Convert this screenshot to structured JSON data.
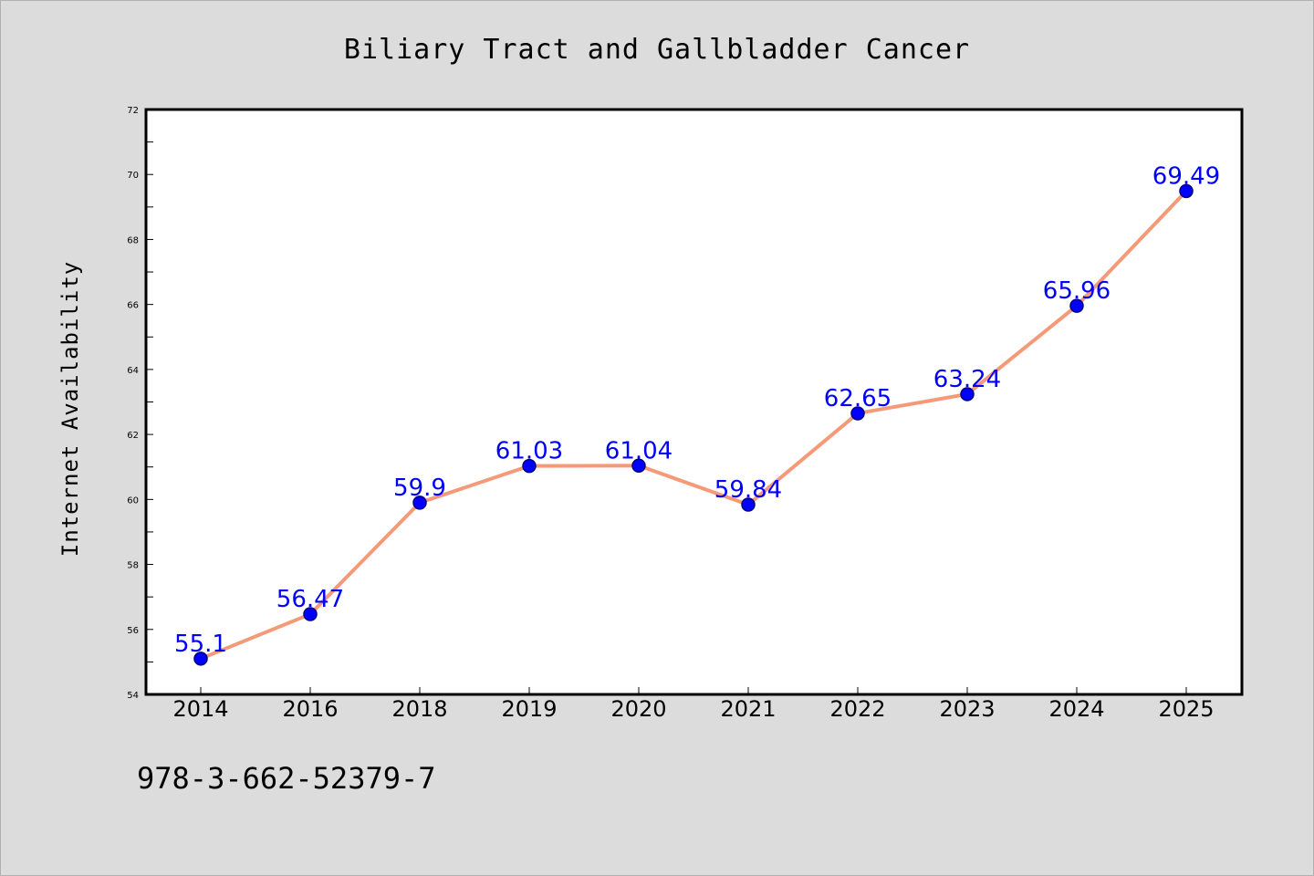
{
  "chart_data": {
    "type": "line",
    "title": "Biliary Tract and Gallbladder Cancer",
    "xlabel": "",
    "ylabel": "Internet Availability",
    "categories": [
      "2014",
      "2016",
      "2018",
      "2019",
      "2020",
      "2021",
      "2022",
      "2023",
      "2024",
      "2025"
    ],
    "series": [
      {
        "values": [
          55.1,
          56.47,
          59.9,
          61.03,
          61.04,
          59.84,
          62.65,
          63.24,
          65.96,
          69.49
        ],
        "data_labels": [
          "55.1",
          "56.47",
          "59.9",
          "61.03",
          "61.04",
          "59.84",
          "62.65",
          "63.24",
          "65.96",
          "69.49"
        ]
      }
    ],
    "ylim": [
      54,
      72
    ],
    "yticks": [
      "54",
      "56",
      "58",
      "60",
      "62",
      "64",
      "66",
      "68",
      "70",
      "72"
    ],
    "grid": false,
    "legend": "none",
    "colors": {
      "line": "#f59a79",
      "marker": "#0000ff",
      "marker_edge": "#000080",
      "label": "#0000ff",
      "background": "#dcdcdc",
      "plot_background": "#ffffff"
    }
  },
  "footer": {
    "isbn": "978-3-662-52379-7"
  }
}
